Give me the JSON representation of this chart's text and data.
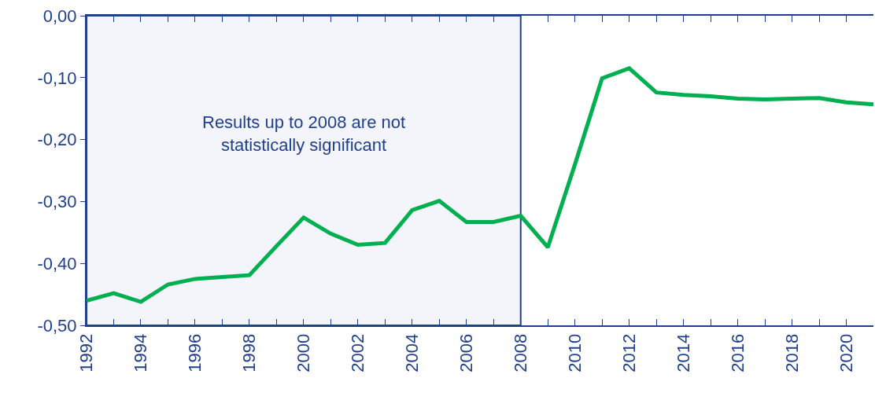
{
  "chart_data": {
    "type": "line",
    "x": [
      1992,
      1993,
      1994,
      1995,
      1996,
      1997,
      1998,
      1999,
      2000,
      2001,
      2002,
      2003,
      2004,
      2005,
      2006,
      2007,
      2008,
      2009,
      2010,
      2011,
      2012,
      2013,
      2014,
      2015,
      2016,
      2017,
      2018,
      2019,
      2020,
      2021
    ],
    "series": [
      {
        "color": "#00b050",
        "values": [
          -0.46,
          -0.448,
          -0.462,
          -0.434,
          -0.425,
          -0.422,
          -0.419,
          -0.372,
          -0.326,
          -0.352,
          -0.37,
          -0.367,
          -0.314,
          -0.299,
          -0.333,
          -0.333,
          -0.323,
          -0.374,
          -0.24,
          -0.101,
          -0.085,
          -0.124,
          -0.128,
          -0.13,
          -0.134,
          -0.135,
          -0.134,
          -0.133,
          -0.14,
          -0.143
        ]
      }
    ],
    "xlim": [
      1992,
      2021
    ],
    "xticks": [
      1992,
      {
        "value": 1993,
        "label": null
      },
      1994,
      {
        "value": 1995,
        "label": null
      },
      1996,
      {
        "value": 1997,
        "label": null
      },
      1998,
      {
        "value": 1999,
        "label": null
      },
      2000,
      {
        "value": 2001,
        "label": null
      },
      2002,
      {
        "value": 2003,
        "label": null
      },
      2004,
      {
        "value": 2005,
        "label": null
      },
      2006,
      {
        "value": 2007,
        "label": null
      },
      2008,
      {
        "value": 2009,
        "label": null
      },
      2010,
      {
        "value": 2011,
        "label": null
      },
      2012,
      {
        "value": 2013,
        "label": null
      },
      2014,
      {
        "value": 2015,
        "label": null
      },
      2016,
      {
        "value": 2017,
        "label": null
      },
      2018,
      {
        "value": 2019,
        "label": null
      },
      2020,
      {
        "value": 2021,
        "label": null
      }
    ],
    "ylim": [
      -0.5,
      0
    ],
    "yticks": [
      {
        "value": 0,
        "label": "0,00"
      },
      {
        "value": -0.1,
        "label": "-0,10"
      },
      {
        "value": -0.2,
        "label": "-0,20"
      },
      {
        "value": -0.3,
        "label": "-0,30"
      },
      {
        "value": -0.4,
        "label": "-0,40"
      },
      {
        "value": -0.5,
        "label": "-0,50"
      }
    ],
    "bands": [
      {
        "axis": "x",
        "from": 1992,
        "to": 2008,
        "label": "Results up to 2008 are not statistically significant",
        "color": "#f3f5fb"
      }
    ],
    "grid": false,
    "marker": "none",
    "line_style": "solid"
  }
}
